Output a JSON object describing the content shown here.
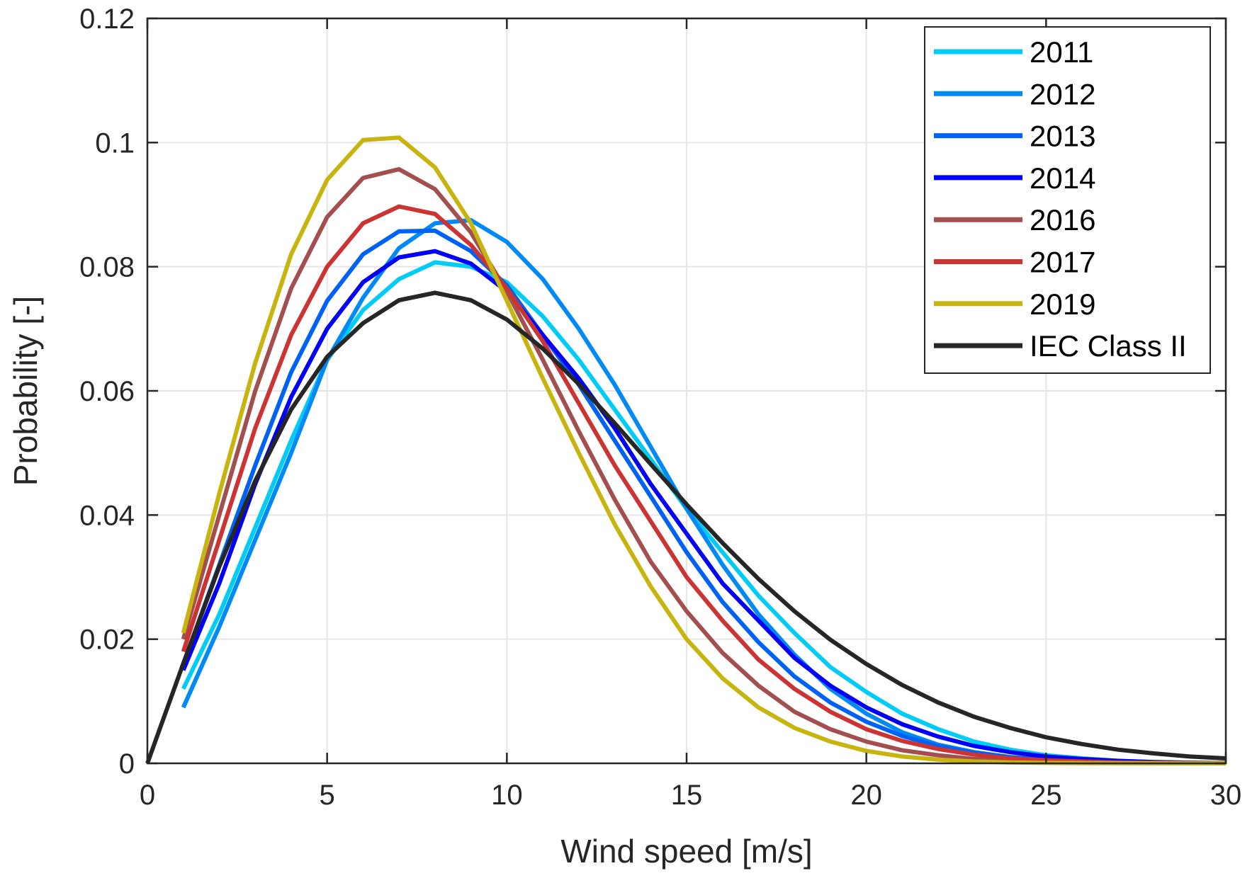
{
  "chart_data": {
    "type": "line",
    "title": "",
    "xlabel": "Wind speed [m/s]",
    "ylabel": "Probability [-]",
    "xlim": [
      0,
      30
    ],
    "ylim": [
      0,
      0.12
    ],
    "xticks": [
      0,
      5,
      10,
      15,
      20,
      25,
      30
    ],
    "xtick_labels": [
      "0",
      "5",
      "10",
      "15",
      "20",
      "25",
      "30"
    ],
    "yticks": [
      0,
      0.02,
      0.04,
      0.06,
      0.08,
      0.1,
      0.12
    ],
    "ytick_labels": [
      "0",
      "0.02",
      "0.04",
      "0.06",
      "0.08",
      "0.1",
      "0.12"
    ],
    "grid": true,
    "legend_position": "top-right",
    "series": [
      {
        "name": "2011",
        "color": "#00CCF5",
        "x": [
          1,
          2,
          3,
          4,
          5,
          6,
          7,
          8,
          9,
          10,
          11,
          12,
          13,
          14,
          15,
          16,
          17,
          18,
          19,
          20,
          21,
          22,
          23,
          24,
          25,
          26,
          27,
          28,
          29,
          30
        ],
        "values": [
          0.012,
          0.024,
          0.038,
          0.052,
          0.065,
          0.073,
          0.078,
          0.0807,
          0.08,
          0.0775,
          0.072,
          0.065,
          0.057,
          0.049,
          0.041,
          0.034,
          0.027,
          0.021,
          0.0155,
          0.0115,
          0.008,
          0.0055,
          0.0035,
          0.0022,
          0.0013,
          0.0008,
          0.0004,
          0.0002,
          0.0001,
          5e-05
        ]
      },
      {
        "name": "2012",
        "color": "#008AF5",
        "x": [
          1,
          2,
          3,
          4,
          5,
          6,
          7,
          8,
          9,
          10,
          11,
          12,
          13,
          14,
          15,
          16,
          17,
          18,
          19,
          20,
          21,
          22,
          23,
          24,
          25,
          26,
          27,
          28,
          29,
          30
        ],
        "values": [
          0.009,
          0.022,
          0.036,
          0.05,
          0.065,
          0.075,
          0.083,
          0.087,
          0.0875,
          0.084,
          0.078,
          0.07,
          0.061,
          0.051,
          0.041,
          0.032,
          0.024,
          0.0175,
          0.012,
          0.008,
          0.005,
          0.003,
          0.0018,
          0.001,
          0.0005,
          0.0003,
          0.0001,
          5e-05,
          2e-05,
          1e-05
        ]
      },
      {
        "name": "2013",
        "color": "#0062F5",
        "x": [
          1,
          2,
          3,
          4,
          5,
          6,
          7,
          8,
          9,
          10,
          11,
          12,
          13,
          14,
          15,
          16,
          17,
          18,
          19,
          20,
          21,
          22,
          23,
          24,
          25,
          26,
          27,
          28,
          29,
          30
        ],
        "values": [
          0.016,
          0.032,
          0.048,
          0.063,
          0.0745,
          0.082,
          0.0857,
          0.0858,
          0.0825,
          0.077,
          0.069,
          0.061,
          0.052,
          0.043,
          0.034,
          0.026,
          0.0195,
          0.014,
          0.0098,
          0.0067,
          0.0044,
          0.0028,
          0.0017,
          0.001,
          0.0006,
          0.0003,
          0.00015,
          8e-05,
          4e-05,
          2e-05
        ]
      },
      {
        "name": "2014",
        "color": "#0000F5",
        "x": [
          1,
          2,
          3,
          4,
          5,
          6,
          7,
          8,
          9,
          10,
          11,
          12,
          13,
          14,
          15,
          16,
          17,
          18,
          19,
          20,
          21,
          22,
          23,
          24,
          25,
          26,
          27,
          28,
          29,
          30
        ],
        "values": [
          0.015,
          0.029,
          0.045,
          0.059,
          0.07,
          0.0775,
          0.0815,
          0.0825,
          0.0805,
          0.076,
          0.069,
          0.062,
          0.054,
          0.045,
          0.037,
          0.029,
          0.023,
          0.017,
          0.0125,
          0.009,
          0.0063,
          0.0043,
          0.0028,
          0.0018,
          0.0011,
          0.0007,
          0.0004,
          0.0002,
          0.0001,
          5e-05
        ]
      },
      {
        "name": "2016",
        "color": "#A44F4F",
        "x": [
          1,
          2,
          3,
          4,
          5,
          6,
          7,
          8,
          9,
          10,
          11,
          12,
          13,
          14,
          15,
          16,
          17,
          18,
          19,
          20,
          21,
          22,
          23,
          24,
          25,
          26,
          27,
          28,
          29,
          30
        ],
        "values": [
          0.02,
          0.04,
          0.06,
          0.0765,
          0.088,
          0.0943,
          0.0957,
          0.0925,
          0.0855,
          0.076,
          0.065,
          0.0535,
          0.0425,
          0.0325,
          0.0245,
          0.0178,
          0.0125,
          0.0083,
          0.0055,
          0.0035,
          0.0021,
          0.0013,
          0.0007,
          0.0004,
          0.0002,
          0.0001,
          5e-05,
          2e-05,
          1e-05,
          0
        ]
      },
      {
        "name": "2017",
        "color": "#CC3333",
        "x": [
          1,
          2,
          3,
          4,
          5,
          6,
          7,
          8,
          9,
          10,
          11,
          12,
          13,
          14,
          15,
          16,
          17,
          18,
          19,
          20,
          21,
          22,
          23,
          24,
          25,
          26,
          27,
          28,
          29,
          30
        ],
        "values": [
          0.018,
          0.036,
          0.054,
          0.069,
          0.08,
          0.087,
          0.0897,
          0.0885,
          0.0835,
          0.0765,
          0.068,
          0.058,
          0.048,
          0.039,
          0.03,
          0.023,
          0.0167,
          0.012,
          0.0083,
          0.0055,
          0.0036,
          0.0023,
          0.0014,
          0.0008,
          0.0005,
          0.0003,
          0.00015,
          8e-05,
          4e-05,
          2e-05
        ]
      },
      {
        "name": "2019",
        "color": "#C8B40E",
        "x": [
          1,
          2,
          3,
          4,
          5,
          6,
          7,
          8,
          9,
          10,
          11,
          12,
          13,
          14,
          15,
          16,
          17,
          18,
          19,
          20,
          21,
          22,
          23,
          24,
          25,
          26,
          27,
          28,
          29,
          30
        ],
        "values": [
          0.021,
          0.0435,
          0.0645,
          0.082,
          0.094,
          0.1004,
          0.1008,
          0.096,
          0.087,
          0.0745,
          0.062,
          0.05,
          0.0385,
          0.0285,
          0.02,
          0.0137,
          0.009,
          0.0057,
          0.0035,
          0.002,
          0.0011,
          0.0006,
          0.0003,
          0.00015,
          7e-05,
          3e-05,
          1e-05,
          0,
          0,
          0
        ]
      },
      {
        "name": "IEC Class II",
        "color": "#262626",
        "x": [
          0,
          1,
          2,
          3,
          4,
          5,
          6,
          7,
          8,
          9,
          10,
          11,
          12,
          13,
          14,
          15,
          16,
          17,
          18,
          19,
          20,
          21,
          22,
          23,
          24,
          25,
          26,
          27,
          28,
          29,
          30
        ],
        "values": [
          0,
          0.0161,
          0.0317,
          0.0455,
          0.057,
          0.0655,
          0.0709,
          0.0746,
          0.0758,
          0.0746,
          0.0715,
          0.0668,
          0.0611,
          0.0548,
          0.0482,
          0.0417,
          0.0355,
          0.0297,
          0.0245,
          0.0199,
          0.016,
          0.0126,
          0.0098,
          0.0075,
          0.0057,
          0.0042,
          0.0031,
          0.0022,
          0.0016,
          0.0011,
          0.0008
        ]
      }
    ]
  }
}
